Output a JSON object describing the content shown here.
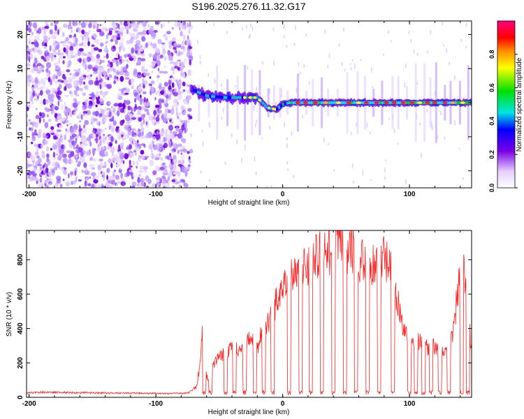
{
  "figure_title": "S196.2025.276.11.32.G17",
  "colormap": [
    "#ffffff",
    "#7a00e6",
    "#0000ff",
    "#00e5e5",
    "#00e000",
    "#ffff00",
    "#ff8c00",
    "#ff0000",
    "#ff0080"
  ],
  "chart_data": [
    {
      "type": "heatmap",
      "title": "",
      "xlabel": "Height of straight line (km)",
      "ylabel": "Frequency (Hz)",
      "xlim": [
        -202,
        149
      ],
      "ylim": [
        -25,
        24
      ],
      "xticks": [
        -200,
        -100,
        0,
        100
      ],
      "xtick_labels": [
        "-200",
        "-100",
        "0",
        "100"
      ],
      "yticks": [
        -20,
        -10,
        0,
        10,
        20
      ],
      "ytick_labels": [
        "-20",
        "-10",
        "0",
        "10",
        "20"
      ],
      "colorbar": {
        "label": "Normalized spectral amplitude",
        "range": [
          0,
          1
        ],
        "ticks": [
          0,
          0.2,
          0.4,
          0.6,
          0.8
        ],
        "tick_labels": [
          "0.0",
          "0.2",
          "0.4",
          "0.6",
          "0.8"
        ]
      },
      "description_points": {
        "noise_region_x": [
          -202,
          -72
        ],
        "signal_trace": [
          {
            "x": -72,
            "y": 4
          },
          {
            "x": -60,
            "y": 2
          },
          {
            "x": -45,
            "y": 1.5
          },
          {
            "x": -30,
            "y": 1.5
          },
          {
            "x": -20,
            "y": 1.5
          },
          {
            "x": -12,
            "y": -1.5
          },
          {
            "x": -5,
            "y": -2
          },
          {
            "x": 0,
            "y": -0.5
          },
          {
            "x": 5,
            "y": 0
          },
          {
            "x": 20,
            "y": 0
          },
          {
            "x": 60,
            "y": 0
          },
          {
            "x": 100,
            "y": 0
          },
          {
            "x": 149,
            "y": 0
          }
        ]
      }
    },
    {
      "type": "line",
      "title": "",
      "xlabel": "Height of straight line (km)",
      "ylabel": "SNR (10 * v/v)",
      "xlim": [
        -202,
        149
      ],
      "ylim": [
        0,
        970
      ],
      "xticks": [
        -200,
        -100,
        0,
        100
      ],
      "xtick_labels": [
        "-200",
        "-100",
        "0",
        "100"
      ],
      "yticks": [
        0,
        200,
        400,
        600,
        800
      ],
      "ytick_labels": [
        "0",
        "200",
        "400",
        "600",
        "800"
      ],
      "series": [
        {
          "name": "SNR",
          "color": "#ff2020",
          "x": [
            -202,
            -190,
            -170,
            -150,
            -130,
            -110,
            -90,
            -75,
            -68,
            -65,
            -63,
            -62,
            -60,
            -58,
            -55,
            -50,
            -45,
            -40,
            -35,
            -30,
            -25,
            -20,
            -15,
            -10,
            -5,
            0,
            5,
            10,
            15,
            20,
            25,
            30,
            35,
            40,
            45,
            50,
            55,
            60,
            65,
            70,
            75,
            80,
            85,
            90,
            95,
            100,
            105,
            110,
            115,
            120,
            125,
            130,
            135,
            140,
            145,
            149
          ],
          "values": [
            25,
            30,
            28,
            26,
            25,
            24,
            22,
            25,
            60,
            200,
            400,
            250,
            120,
            90,
            180,
            230,
            260,
            310,
            270,
            260,
            380,
            280,
            430,
            460,
            560,
            620,
            680,
            700,
            720,
            760,
            800,
            850,
            820,
            880,
            900,
            830,
            870,
            790,
            840,
            760,
            820,
            800,
            740,
            600,
            420,
            300,
            330,
            310,
            290,
            300,
            250,
            280,
            400,
            780,
            650,
            230
          ]
        }
      ],
      "dropouts_x": [
        -62,
        -57,
        -45,
        -38,
        -30,
        -22,
        -15,
        -8,
        5,
        14,
        22,
        31,
        40,
        49,
        58,
        67,
        76,
        87,
        100,
        105,
        111,
        117,
        124,
        131,
        141,
        146
      ]
    }
  ]
}
